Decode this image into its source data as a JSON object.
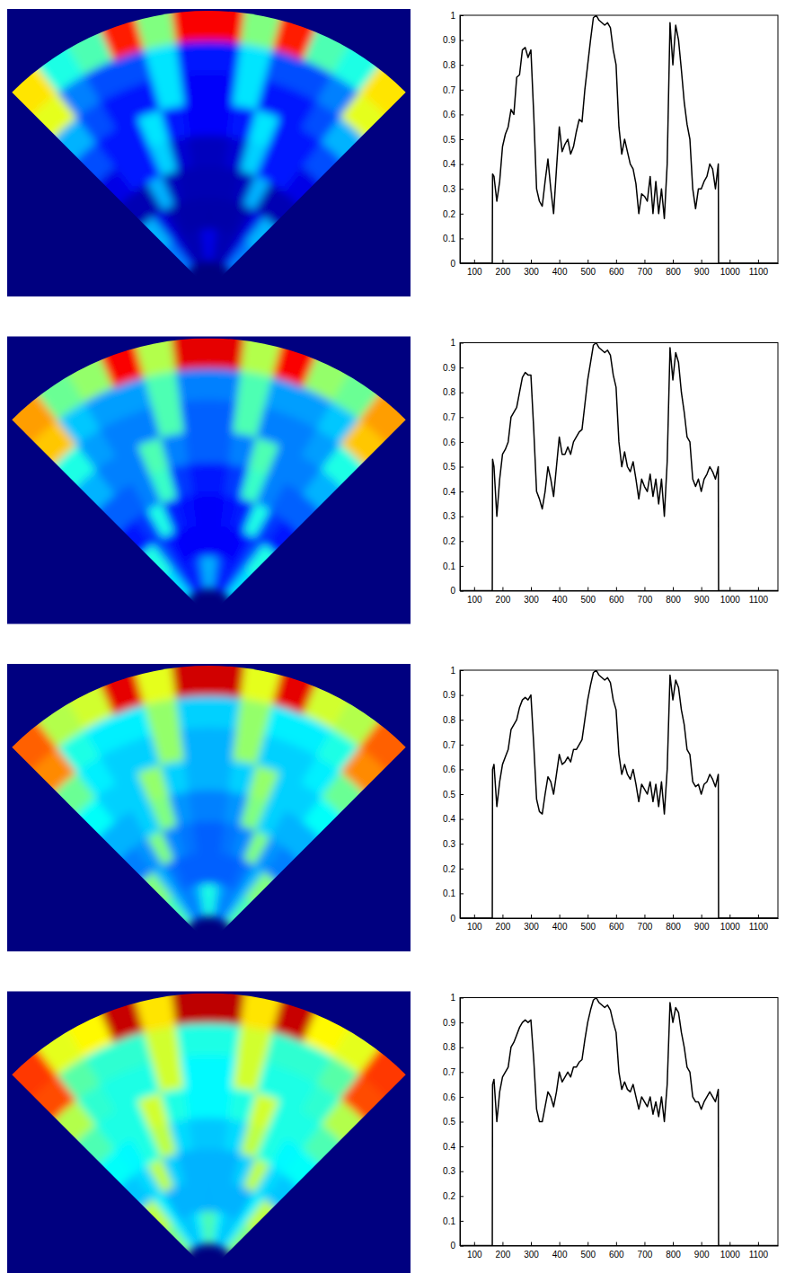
{
  "chart_data": [
    {
      "type": "heatmap",
      "color": "jet",
      "zlim": [
        0,
        1
      ],
      "tick_labels": false,
      "cells": [
        [
          0.65,
          0.4,
          0.45,
          0.85,
          0.5,
          0.88,
          0.88,
          0.5,
          0.85,
          0.45,
          0.4,
          0.65
        ],
        [
          0.6,
          0.25,
          0.2,
          0.2,
          0.35,
          0.15,
          0.15,
          0.35,
          0.2,
          0.2,
          0.25,
          0.6
        ],
        [
          0.3,
          0.2,
          0.15,
          0.15,
          0.35,
          0.12,
          0.12,
          0.35,
          0.15,
          0.15,
          0.2,
          0.3
        ],
        [
          0.2,
          0.15,
          0.15,
          0.35,
          0.15,
          0.12,
          0.12,
          0.15,
          0.35,
          0.15,
          0.15,
          0.2
        ],
        [
          0.1,
          0.15,
          0.15,
          0.33,
          0.08,
          0.06,
          0.06,
          0.08,
          0.33,
          0.15,
          0.15,
          0.1
        ],
        [
          0.05,
          0.05,
          0.3,
          0.06,
          0.05,
          0.05,
          0.05,
          0.05,
          0.06,
          0.3,
          0.05,
          0.05
        ],
        [
          0.3,
          0.1,
          0.05,
          0.04,
          0.04,
          0.04,
          0.04,
          0.04,
          0.04,
          0.05,
          0.1,
          0.3
        ],
        [
          0.25,
          0.1,
          0.05,
          0.05,
          0.05,
          0.1,
          0.1,
          0.05,
          0.05,
          0.05,
          0.1,
          0.25
        ]
      ]
    },
    {
      "type": "line",
      "color": "#000000",
      "grid": false,
      "xlim": [
        50,
        1170
      ],
      "xticks": [
        100,
        200,
        300,
        400,
        500,
        600,
        700,
        800,
        900,
        1000,
        1100
      ],
      "ylim": [
        0,
        1
      ],
      "yticks": [
        0,
        0.1,
        0.2,
        0.3,
        0.4,
        0.5,
        0.6,
        0.7,
        0.8,
        0.9,
        1
      ],
      "x": [
        50,
        164,
        165,
        170,
        180,
        190,
        200,
        210,
        220,
        230,
        240,
        250,
        260,
        270,
        280,
        290,
        300,
        310,
        320,
        330,
        340,
        350,
        360,
        370,
        380,
        390,
        400,
        410,
        420,
        430,
        440,
        450,
        460,
        470,
        480,
        490,
        500,
        510,
        520,
        530,
        540,
        550,
        560,
        570,
        580,
        590,
        600,
        610,
        620,
        630,
        640,
        650,
        660,
        670,
        680,
        690,
        700,
        710,
        720,
        730,
        740,
        750,
        760,
        770,
        780,
        790,
        800,
        810,
        820,
        830,
        840,
        850,
        860,
        870,
        880,
        890,
        900,
        910,
        920,
        930,
        940,
        950,
        960,
        961,
        1170
      ],
      "values": [
        0,
        0,
        0.36,
        0.35,
        0.25,
        0.33,
        0.47,
        0.52,
        0.55,
        0.62,
        0.6,
        0.75,
        0.76,
        0.86,
        0.87,
        0.83,
        0.86,
        0.6,
        0.3,
        0.25,
        0.23,
        0.33,
        0.42,
        0.3,
        0.2,
        0.38,
        0.55,
        0.45,
        0.48,
        0.5,
        0.44,
        0.47,
        0.53,
        0.58,
        0.57,
        0.7,
        0.8,
        0.9,
        0.99,
        1,
        0.98,
        0.97,
        0.96,
        0.97,
        0.95,
        0.86,
        0.8,
        0.55,
        0.44,
        0.5,
        0.45,
        0.4,
        0.38,
        0.32,
        0.2,
        0.28,
        0.27,
        0.25,
        0.35,
        0.2,
        0.33,
        0.2,
        0.3,
        0.18,
        0.4,
        0.97,
        0.8,
        0.96,
        0.9,
        0.78,
        0.65,
        0.56,
        0.5,
        0.3,
        0.22,
        0.3,
        0.3,
        0.33,
        0.35,
        0.4,
        0.38,
        0.3,
        0.4,
        0,
        0
      ]
    },
    {
      "type": "heatmap",
      "color": "jet",
      "zlim": [
        0,
        1
      ],
      "tick_labels": false,
      "cells": [
        [
          0.72,
          0.48,
          0.52,
          0.88,
          0.55,
          0.9,
          0.9,
          0.55,
          0.88,
          0.52,
          0.48,
          0.72
        ],
        [
          0.68,
          0.32,
          0.28,
          0.28,
          0.45,
          0.25,
          0.25,
          0.45,
          0.28,
          0.28,
          0.32,
          0.68
        ],
        [
          0.4,
          0.28,
          0.25,
          0.25,
          0.45,
          0.22,
          0.22,
          0.45,
          0.25,
          0.25,
          0.28,
          0.4
        ],
        [
          0.3,
          0.25,
          0.25,
          0.45,
          0.25,
          0.22,
          0.22,
          0.25,
          0.45,
          0.25,
          0.25,
          0.3
        ],
        [
          0.22,
          0.22,
          0.25,
          0.43,
          0.18,
          0.15,
          0.15,
          0.18,
          0.43,
          0.25,
          0.22,
          0.22
        ],
        [
          0.15,
          0.18,
          0.4,
          0.16,
          0.14,
          0.12,
          0.12,
          0.14,
          0.16,
          0.4,
          0.18,
          0.15
        ],
        [
          0.4,
          0.2,
          0.14,
          0.12,
          0.12,
          0.12,
          0.12,
          0.12,
          0.12,
          0.14,
          0.2,
          0.4
        ],
        [
          0.35,
          0.2,
          0.15,
          0.15,
          0.2,
          0.3,
          0.3,
          0.2,
          0.15,
          0.15,
          0.2,
          0.35
        ]
      ]
    },
    {
      "type": "line",
      "color": "#000000",
      "grid": false,
      "xlim": [
        50,
        1170
      ],
      "xticks": [
        100,
        200,
        300,
        400,
        500,
        600,
        700,
        800,
        900,
        1000,
        1100
      ],
      "ylim": [
        0,
        1
      ],
      "yticks": [
        0,
        0.1,
        0.2,
        0.3,
        0.4,
        0.5,
        0.6,
        0.7,
        0.8,
        0.9,
        1
      ],
      "x": [
        50,
        164,
        165,
        170,
        180,
        190,
        200,
        210,
        220,
        230,
        240,
        250,
        260,
        270,
        280,
        290,
        300,
        310,
        320,
        330,
        340,
        350,
        360,
        370,
        380,
        390,
        400,
        410,
        420,
        430,
        440,
        450,
        460,
        470,
        480,
        490,
        500,
        510,
        520,
        530,
        540,
        550,
        560,
        570,
        580,
        590,
        600,
        610,
        620,
        630,
        640,
        650,
        660,
        670,
        680,
        690,
        700,
        710,
        720,
        730,
        740,
        750,
        760,
        770,
        780,
        790,
        800,
        810,
        820,
        830,
        840,
        850,
        860,
        870,
        880,
        890,
        900,
        910,
        920,
        930,
        940,
        950,
        960,
        961,
        1170
      ],
      "values": [
        0,
        0,
        0.53,
        0.5,
        0.3,
        0.45,
        0.55,
        0.57,
        0.6,
        0.7,
        0.72,
        0.74,
        0.8,
        0.86,
        0.88,
        0.87,
        0.87,
        0.65,
        0.4,
        0.37,
        0.33,
        0.4,
        0.5,
        0.45,
        0.38,
        0.5,
        0.62,
        0.55,
        0.55,
        0.58,
        0.55,
        0.6,
        0.62,
        0.64,
        0.65,
        0.75,
        0.85,
        0.92,
        0.99,
        1,
        0.98,
        0.97,
        0.96,
        0.97,
        0.95,
        0.87,
        0.82,
        0.6,
        0.5,
        0.56,
        0.5,
        0.48,
        0.52,
        0.45,
        0.37,
        0.45,
        0.42,
        0.4,
        0.47,
        0.38,
        0.45,
        0.35,
        0.45,
        0.3,
        0.52,
        0.98,
        0.85,
        0.96,
        0.92,
        0.8,
        0.72,
        0.62,
        0.6,
        0.45,
        0.42,
        0.45,
        0.4,
        0.45,
        0.47,
        0.5,
        0.48,
        0.45,
        0.5,
        0,
        0
      ]
    },
    {
      "type": "heatmap",
      "color": "jet",
      "zlim": [
        0,
        1
      ],
      "tick_labels": false,
      "cells": [
        [
          0.78,
          0.55,
          0.58,
          0.9,
          0.6,
          0.92,
          0.92,
          0.6,
          0.9,
          0.58,
          0.55,
          0.78
        ],
        [
          0.74,
          0.4,
          0.36,
          0.36,
          0.52,
          0.33,
          0.33,
          0.52,
          0.36,
          0.36,
          0.4,
          0.74
        ],
        [
          0.48,
          0.36,
          0.33,
          0.33,
          0.52,
          0.3,
          0.3,
          0.52,
          0.33,
          0.33,
          0.36,
          0.48
        ],
        [
          0.38,
          0.33,
          0.33,
          0.52,
          0.33,
          0.3,
          0.3,
          0.33,
          0.52,
          0.33,
          0.33,
          0.38
        ],
        [
          0.3,
          0.3,
          0.33,
          0.5,
          0.27,
          0.25,
          0.25,
          0.27,
          0.5,
          0.33,
          0.3,
          0.3
        ],
        [
          0.25,
          0.27,
          0.5,
          0.26,
          0.24,
          0.22,
          0.22,
          0.24,
          0.26,
          0.5,
          0.27,
          0.25
        ],
        [
          0.5,
          0.3,
          0.24,
          0.22,
          0.22,
          0.22,
          0.22,
          0.22,
          0.22,
          0.24,
          0.3,
          0.5
        ],
        [
          0.45,
          0.3,
          0.25,
          0.25,
          0.3,
          0.4,
          0.4,
          0.3,
          0.25,
          0.25,
          0.3,
          0.45
        ]
      ]
    },
    {
      "type": "line",
      "color": "#000000",
      "grid": false,
      "xlim": [
        50,
        1170
      ],
      "xticks": [
        100,
        200,
        300,
        400,
        500,
        600,
        700,
        800,
        900,
        1000,
        1100
      ],
      "ylim": [
        0,
        1
      ],
      "yticks": [
        0,
        0.1,
        0.2,
        0.3,
        0.4,
        0.5,
        0.6,
        0.7,
        0.8,
        0.9,
        1
      ],
      "x": [
        50,
        164,
        165,
        170,
        180,
        190,
        200,
        210,
        220,
        230,
        240,
        250,
        260,
        270,
        280,
        290,
        300,
        310,
        320,
        330,
        340,
        350,
        360,
        370,
        380,
        390,
        400,
        410,
        420,
        430,
        440,
        450,
        460,
        470,
        480,
        490,
        500,
        510,
        520,
        530,
        540,
        550,
        560,
        570,
        580,
        590,
        600,
        610,
        620,
        630,
        640,
        650,
        660,
        670,
        680,
        690,
        700,
        710,
        720,
        730,
        740,
        750,
        760,
        770,
        780,
        790,
        800,
        810,
        820,
        830,
        840,
        850,
        860,
        870,
        880,
        890,
        900,
        910,
        920,
        930,
        940,
        950,
        960,
        961,
        1170
      ],
      "values": [
        0,
        0,
        0.6,
        0.62,
        0.45,
        0.55,
        0.62,
        0.65,
        0.68,
        0.76,
        0.78,
        0.8,
        0.85,
        0.88,
        0.89,
        0.88,
        0.9,
        0.7,
        0.48,
        0.43,
        0.42,
        0.5,
        0.57,
        0.55,
        0.5,
        0.58,
        0.66,
        0.62,
        0.63,
        0.65,
        0.63,
        0.68,
        0.68,
        0.7,
        0.72,
        0.8,
        0.88,
        0.94,
        0.99,
        1,
        0.98,
        0.97,
        0.96,
        0.97,
        0.95,
        0.88,
        0.84,
        0.66,
        0.58,
        0.62,
        0.58,
        0.56,
        0.6,
        0.54,
        0.47,
        0.54,
        0.52,
        0.5,
        0.55,
        0.47,
        0.54,
        0.45,
        0.55,
        0.42,
        0.6,
        0.98,
        0.88,
        0.96,
        0.93,
        0.84,
        0.78,
        0.68,
        0.66,
        0.55,
        0.53,
        0.54,
        0.5,
        0.54,
        0.55,
        0.58,
        0.56,
        0.53,
        0.58,
        0,
        0
      ]
    },
    {
      "type": "heatmap",
      "color": "jet",
      "zlim": [
        0,
        1
      ],
      "tick_labels": false,
      "cells": [
        [
          0.82,
          0.6,
          0.63,
          0.93,
          0.65,
          0.94,
          0.94,
          0.65,
          0.93,
          0.63,
          0.6,
          0.82
        ],
        [
          0.8,
          0.46,
          0.42,
          0.42,
          0.58,
          0.4,
          0.4,
          0.58,
          0.42,
          0.42,
          0.46,
          0.8
        ],
        [
          0.55,
          0.42,
          0.4,
          0.4,
          0.58,
          0.37,
          0.37,
          0.58,
          0.4,
          0.4,
          0.42,
          0.55
        ],
        [
          0.45,
          0.4,
          0.4,
          0.58,
          0.4,
          0.37,
          0.37,
          0.4,
          0.58,
          0.4,
          0.4,
          0.45
        ],
        [
          0.38,
          0.37,
          0.4,
          0.56,
          0.34,
          0.32,
          0.32,
          0.34,
          0.56,
          0.4,
          0.37,
          0.38
        ],
        [
          0.32,
          0.34,
          0.56,
          0.33,
          0.3,
          0.3,
          0.3,
          0.3,
          0.33,
          0.56,
          0.34,
          0.32
        ],
        [
          0.56,
          0.36,
          0.3,
          0.3,
          0.3,
          0.3,
          0.3,
          0.3,
          0.3,
          0.3,
          0.36,
          0.56
        ],
        [
          0.5,
          0.36,
          0.32,
          0.32,
          0.36,
          0.45,
          0.45,
          0.36,
          0.32,
          0.32,
          0.36,
          0.5
        ]
      ]
    },
    {
      "type": "line",
      "color": "#000000",
      "grid": false,
      "xlim": [
        50,
        1170
      ],
      "xticks": [
        100,
        200,
        300,
        400,
        500,
        600,
        700,
        800,
        900,
        1000,
        1100
      ],
      "ylim": [
        0,
        1
      ],
      "yticks": [
        0,
        0.1,
        0.2,
        0.3,
        0.4,
        0.5,
        0.6,
        0.7,
        0.8,
        0.9,
        1
      ],
      "x": [
        50,
        164,
        165,
        170,
        180,
        190,
        200,
        210,
        220,
        230,
        240,
        250,
        260,
        270,
        280,
        290,
        300,
        310,
        320,
        330,
        340,
        350,
        360,
        370,
        380,
        390,
        400,
        410,
        420,
        430,
        440,
        450,
        460,
        470,
        480,
        490,
        500,
        510,
        520,
        530,
        540,
        550,
        560,
        570,
        580,
        590,
        600,
        610,
        620,
        630,
        640,
        650,
        660,
        670,
        680,
        690,
        700,
        710,
        720,
        730,
        740,
        750,
        760,
        770,
        780,
        790,
        800,
        810,
        820,
        830,
        840,
        850,
        860,
        870,
        880,
        890,
        900,
        910,
        920,
        930,
        940,
        950,
        960,
        961,
        1170
      ],
      "values": [
        0,
        0,
        0.65,
        0.67,
        0.5,
        0.62,
        0.68,
        0.7,
        0.72,
        0.8,
        0.82,
        0.85,
        0.88,
        0.9,
        0.91,
        0.9,
        0.91,
        0.75,
        0.55,
        0.5,
        0.5,
        0.56,
        0.62,
        0.6,
        0.56,
        0.62,
        0.7,
        0.66,
        0.68,
        0.7,
        0.68,
        0.72,
        0.72,
        0.74,
        0.75,
        0.83,
        0.9,
        0.95,
        0.99,
        1,
        0.98,
        0.97,
        0.96,
        0.97,
        0.95,
        0.9,
        0.86,
        0.7,
        0.63,
        0.66,
        0.63,
        0.62,
        0.65,
        0.6,
        0.55,
        0.6,
        0.58,
        0.56,
        0.6,
        0.53,
        0.58,
        0.52,
        0.6,
        0.5,
        0.65,
        0.98,
        0.9,
        0.96,
        0.94,
        0.86,
        0.8,
        0.72,
        0.7,
        0.6,
        0.58,
        0.58,
        0.55,
        0.58,
        0.6,
        0.62,
        0.6,
        0.58,
        0.63,
        0,
        0
      ]
    }
  ]
}
